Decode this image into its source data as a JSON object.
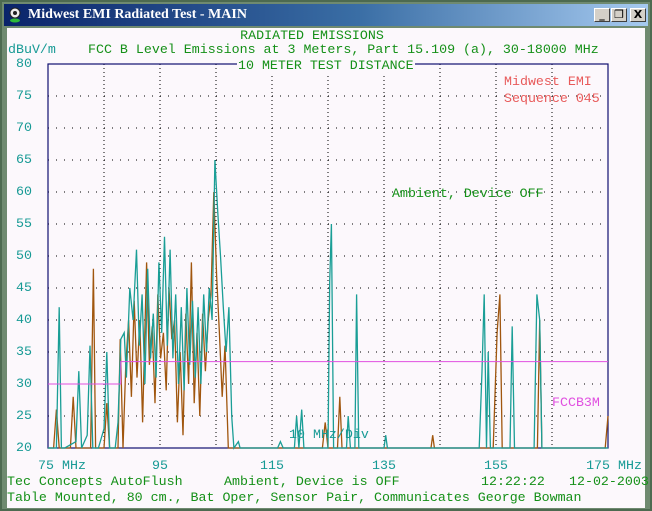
{
  "window": {
    "title": "Midwest EMI Radiated Test - MAIN",
    "buttons": [
      "_",
      "❐",
      "X"
    ]
  },
  "header": {
    "title": "RADIATED EMISSIONS",
    "subtitle": "FCC B Level Emissions at 3 Meters, Part 15.109 (a), 30-18000 MHz",
    "distance": "10 METER TEST DISTANCE",
    "unit": "dBuV/m"
  },
  "annotations": {
    "company": "Midwest EMI",
    "sequence": "Sequence 045",
    "state": "Ambient, Device OFF",
    "limit_label": "FCCB3M",
    "div_label": "10 MHz/Div"
  },
  "footer": {
    "line1_left": "Tec Concepts AutoFlush",
    "line1_mid": "Ambient, Device is OFF",
    "time": "12:22:22",
    "date": "12-02-2003",
    "line2": "Table Mounted, 80 cm., Bat Oper, Sensor Pair, Communicates George Bowman"
  },
  "chart_data": {
    "type": "line",
    "ylabel": "dBuV/m",
    "xlim": [
      75,
      175
    ],
    "ylim": [
      20,
      80
    ],
    "grid": true,
    "y_ticks": [
      "80",
      "75",
      "70",
      "65",
      "60",
      "55",
      "50",
      "45",
      "40",
      "35",
      "30",
      "25",
      "20"
    ],
    "x_ticks": [
      "75 MHz",
      "95",
      "115",
      "135",
      "155",
      "175 MHz"
    ],
    "colors": {
      "trace_a": "#1a9e96",
      "trace_b": "#a0560e",
      "limit": "#e050e0",
      "axis": "#101070",
      "grid": "#000000"
    },
    "limit": {
      "name": "FCCB3M",
      "points": [
        [
          75,
          30
        ],
        [
          88,
          30
        ],
        [
          88,
          33.5
        ],
        [
          175,
          33.5
        ]
      ]
    },
    "series": [
      {
        "points": [
          [
            75,
            20
          ],
          [
            76.5,
            20
          ],
          [
            77,
            42
          ],
          [
            77.4,
            20
          ],
          [
            78,
            20
          ],
          [
            80,
            21
          ],
          [
            80.5,
            32
          ],
          [
            81,
            20
          ],
          [
            82,
            22
          ],
          [
            82.5,
            36
          ],
          [
            83,
            20
          ],
          [
            84,
            20
          ],
          [
            85,
            23
          ],
          [
            85.5,
            35
          ],
          [
            86,
            20
          ],
          [
            87,
            20
          ],
          [
            87.5,
            24
          ],
          [
            88,
            37
          ],
          [
            88.6,
            38
          ],
          [
            89,
            31
          ],
          [
            89.6,
            45
          ],
          [
            90.2,
            40
          ],
          [
            90.8,
            51
          ],
          [
            91.3,
            36
          ],
          [
            91.8,
            44
          ],
          [
            92.3,
            30
          ],
          [
            92.8,
            48
          ],
          [
            93.3,
            34
          ],
          [
            93.8,
            41
          ],
          [
            94.3,
            31
          ],
          [
            94.8,
            49
          ],
          [
            95.3,
            38
          ],
          [
            95.8,
            53
          ],
          [
            96.3,
            36
          ],
          [
            96.8,
            51
          ],
          [
            97.3,
            34
          ],
          [
            97.8,
            44
          ],
          [
            98.3,
            30
          ],
          [
            98.8,
            42
          ],
          [
            99.3,
            29
          ],
          [
            99.8,
            45
          ],
          [
            100.3,
            33
          ],
          [
            100.8,
            43
          ],
          [
            101.3,
            31
          ],
          [
            101.8,
            42
          ],
          [
            102.3,
            30
          ],
          [
            102.8,
            44
          ],
          [
            103.3,
            35
          ],
          [
            103.8,
            45
          ],
          [
            104.3,
            40
          ],
          [
            104.8,
            65
          ],
          [
            105.3,
            57
          ],
          [
            105.8,
            50
          ],
          [
            106.3,
            42
          ],
          [
            106.8,
            35
          ],
          [
            107.3,
            42
          ],
          [
            107.8,
            25
          ],
          [
            108.2,
            20
          ],
          [
            109,
            21
          ],
          [
            109.3,
            20
          ],
          [
            116,
            20
          ],
          [
            116.5,
            21
          ],
          [
            117,
            20
          ],
          [
            119,
            20
          ],
          [
            119.4,
            25
          ],
          [
            119.8,
            20
          ],
          [
            120.3,
            26
          ],
          [
            120.7,
            20
          ],
          [
            125,
            20
          ],
          [
            125.3,
            46
          ],
          [
            125.6,
            55
          ],
          [
            126,
            20
          ],
          [
            128.3,
            20
          ],
          [
            128.6,
            25
          ],
          [
            129,
            20
          ],
          [
            129.8,
            20
          ],
          [
            130.1,
            44
          ],
          [
            130.5,
            20
          ],
          [
            135,
            20
          ],
          [
            135.3,
            22
          ],
          [
            135.6,
            20
          ],
          [
            152,
            20
          ],
          [
            152.5,
            32
          ],
          [
            152.9,
            44
          ],
          [
            153.3,
            20
          ],
          [
            153.6,
            35
          ],
          [
            154,
            20
          ],
          [
            157.5,
            20
          ],
          [
            157.9,
            39
          ],
          [
            158.3,
            20
          ],
          [
            161.8,
            20
          ],
          [
            162.3,
            44
          ],
          [
            162.8,
            40
          ],
          [
            163.2,
            20
          ],
          [
            175,
            20
          ]
        ]
      },
      {
        "points": [
          [
            75,
            20
          ],
          [
            76,
            20
          ],
          [
            76.5,
            26
          ],
          [
            77,
            20
          ],
          [
            79,
            20
          ],
          [
            79.5,
            28
          ],
          [
            80,
            20
          ],
          [
            82.6,
            20
          ],
          [
            83.1,
            48
          ],
          [
            83.5,
            20
          ],
          [
            85,
            20
          ],
          [
            85.5,
            27
          ],
          [
            86,
            20
          ],
          [
            87.5,
            20
          ],
          [
            87.9,
            37
          ],
          [
            88.4,
            20
          ],
          [
            88.9,
            33
          ],
          [
            89.4,
            40
          ],
          [
            89.9,
            28
          ],
          [
            90.4,
            43
          ],
          [
            90.9,
            31
          ],
          [
            91.4,
            40
          ],
          [
            91.9,
            24
          ],
          [
            92.6,
            49
          ],
          [
            93.1,
            33
          ],
          [
            93.6,
            39
          ],
          [
            94.1,
            27
          ],
          [
            94.6,
            44
          ],
          [
            95.1,
            34
          ],
          [
            95.6,
            38
          ],
          [
            96.1,
            29
          ],
          [
            96.6,
            45
          ],
          [
            97.1,
            37
          ],
          [
            97.6,
            40
          ],
          [
            98.1,
            24
          ],
          [
            98.6,
            35
          ],
          [
            99.1,
            22
          ],
          [
            99.6,
            41
          ],
          [
            100.1,
            30
          ],
          [
            100.6,
            49
          ],
          [
            101.1,
            27
          ],
          [
            101.6,
            38
          ],
          [
            102.1,
            25
          ],
          [
            102.6,
            41
          ],
          [
            103.1,
            32
          ],
          [
            103.6,
            40
          ],
          [
            104.1,
            44
          ],
          [
            104.6,
            60
          ],
          [
            105.1,
            47
          ],
          [
            105.6,
            38
          ],
          [
            106.1,
            28
          ],
          [
            106.6,
            36
          ],
          [
            107.2,
            20
          ],
          [
            124,
            20
          ],
          [
            124.5,
            24
          ],
          [
            125,
            20
          ],
          [
            126.7,
            20
          ],
          [
            127.1,
            28
          ],
          [
            127.5,
            20
          ],
          [
            143.4,
            20
          ],
          [
            143.7,
            22
          ],
          [
            144,
            20
          ],
          [
            154.5,
            20
          ],
          [
            155.2,
            38
          ],
          [
            155.7,
            44
          ],
          [
            156.1,
            20
          ],
          [
            162.4,
            20
          ],
          [
            162.8,
            40
          ],
          [
            163.2,
            20
          ],
          [
            174.5,
            20
          ],
          [
            175,
            25
          ]
        ]
      }
    ]
  }
}
